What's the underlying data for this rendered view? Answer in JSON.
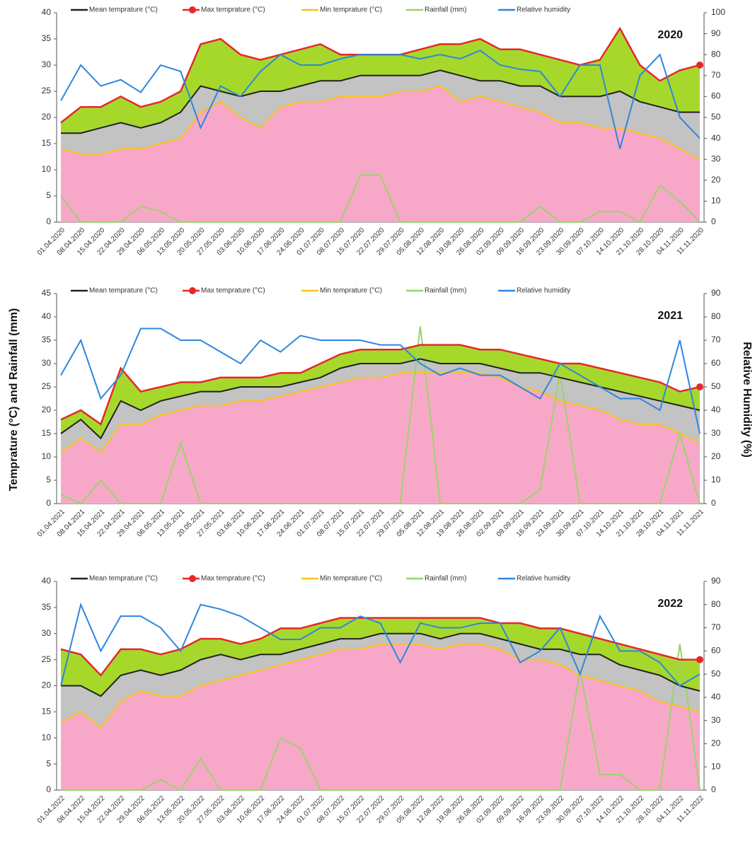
{
  "y_axis_label": "Temprature (°C) and Rainfall (mm)",
  "y2_axis_label": "Relative Humidity (%)",
  "chart_data": [
    {
      "type": "line",
      "annotation": "2020",
      "categories": [
        "01.04.2020",
        "08.04.2020",
        "15.04.2020",
        "22.04.2020",
        "29.04.2020",
        "06.05.2020",
        "13.05.2020",
        "20.05.2020",
        "27.05.2020",
        "03.06.2020",
        "10.06.2020",
        "17.06.2020",
        "24.06.2020",
        "01.07.2020",
        "08.07.2020",
        "15.07.2020",
        "22.07.2020",
        "29.07.2020",
        "05.08.2020",
        "12.08.2020",
        "19.08.2020",
        "26.08.2020",
        "02.09.2020",
        "09.09.2020",
        "16.09.2020",
        "23.09.2020",
        "30.09.2020",
        "07.10.2020",
        "14.10.2020",
        "21.10.2020",
        "28.10.2020",
        "04.11.2020",
        "11.11.2020"
      ],
      "ylim": [
        0,
        40
      ],
      "yticks": [
        0,
        5,
        10,
        15,
        20,
        25,
        30,
        35,
        40
      ],
      "y2lim": [
        0,
        100
      ],
      "y2ticks": [
        0,
        10,
        20,
        30,
        40,
        50,
        60,
        70,
        80,
        90,
        100
      ],
      "series": [
        {
          "name": "Mean temprature  (°C)",
          "color": "#222222",
          "fill": "#c3c3c3",
          "values": [
            17,
            17,
            18,
            19,
            18,
            19,
            21,
            26,
            25,
            24,
            25,
            25,
            26,
            27,
            27,
            28,
            28,
            28,
            28,
            29,
            28,
            27,
            27,
            26,
            26,
            24,
            24,
            24,
            25,
            23,
            22,
            21,
            21
          ]
        },
        {
          "name": "Max temprature (°C)",
          "color": "#e8262a",
          "fill": "#a6d82c",
          "values": [
            19,
            22,
            22,
            24,
            22,
            23,
            25,
            34,
            35,
            32,
            31,
            32,
            33,
            34,
            32,
            32,
            32,
            32,
            33,
            34,
            34,
            35,
            33,
            33,
            32,
            31,
            30,
            31,
            37,
            30,
            27,
            29,
            30
          ]
        },
        {
          "name": "Min temprature (°C)",
          "color": "#f5c518",
          "fill": "#f7a8c8",
          "values": [
            14,
            13,
            13,
            14,
            14,
            15,
            16,
            21,
            23,
            20,
            18,
            22,
            23,
            23,
            24,
            24,
            24,
            25,
            25,
            26,
            23,
            24,
            23,
            22,
            21,
            19,
            19,
            18,
            18,
            17,
            16,
            14,
            12
          ]
        },
        {
          "name": "Rainfall (mm)",
          "color": "#9ad36a",
          "values": [
            5,
            0,
            0,
            0,
            3,
            2,
            0,
            0,
            0,
            0,
            0,
            0,
            0,
            0,
            0,
            9,
            9,
            0,
            0,
            0,
            0,
            0,
            0,
            0,
            3,
            0,
            0,
            2,
            2,
            0,
            7,
            4,
            0
          ]
        },
        {
          "name": "Relative humidity",
          "color": "#2e86de",
          "axis": "y2",
          "values": [
            58,
            75,
            65,
            68,
            62,
            75,
            72,
            45,
            65,
            60,
            72,
            80,
            75,
            75,
            78,
            80,
            80,
            80,
            78,
            80,
            78,
            82,
            75,
            73,
            72,
            60,
            75,
            75,
            35,
            70,
            80,
            50,
            40
          ]
        }
      ]
    },
    {
      "type": "line",
      "annotation": "2021",
      "categories": [
        "01.04.2021",
        "08.04.2021",
        "15.04.2021",
        "22.04.2021",
        "29.04.2021",
        "06.05.2021",
        "13.05.2021",
        "20.05.2021",
        "27.05.2021",
        "03.06.2021",
        "10.06.2021",
        "17.06.2021",
        "24.06.2021",
        "01.07.2021",
        "08.07.2021",
        "15.07.2021",
        "22.07.2021",
        "29.07.2021",
        "05.08.2021",
        "12.08.2021",
        "19.08.2021",
        "26.08.2021",
        "02.09.2021",
        "09.09.2021",
        "16.09.2021",
        "23.09.2021",
        "30.09.2021",
        "07.10.2021",
        "14.10.2021",
        "21.10.2021",
        "28.10.2021",
        "04.11.2021",
        "11.11.2021"
      ],
      "ylim": [
        0,
        45
      ],
      "yticks": [
        0,
        5,
        10,
        15,
        20,
        25,
        30,
        35,
        40,
        45
      ],
      "y2lim": [
        0,
        90
      ],
      "y2ticks": [
        0,
        10,
        20,
        30,
        40,
        50,
        60,
        70,
        80,
        90
      ],
      "series": [
        {
          "name": "Mean temprature  (°C)",
          "color": "#222222",
          "fill": "#c3c3c3",
          "values": [
            15,
            18,
            14,
            22,
            20,
            22,
            23,
            24,
            24,
            25,
            25,
            25,
            26,
            27,
            29,
            30,
            30,
            30,
            31,
            30,
            30,
            30,
            29,
            28,
            28,
            27,
            26,
            25,
            24,
            23,
            22,
            21,
            20
          ]
        },
        {
          "name": "Max temprature (°C)",
          "color": "#e8262a",
          "fill": "#a6d82c",
          "values": [
            18,
            20,
            17,
            29,
            24,
            25,
            26,
            26,
            27,
            27,
            27,
            28,
            28,
            30,
            32,
            33,
            33,
            33,
            34,
            34,
            34,
            33,
            33,
            32,
            31,
            30,
            30,
            29,
            28,
            27,
            26,
            24,
            25
          ]
        },
        {
          "name": "Min temprature (°C)",
          "color": "#f5c518",
          "fill": "#f7a8c8",
          "values": [
            11,
            14,
            11,
            17,
            17,
            19,
            20,
            21,
            21,
            22,
            22,
            23,
            24,
            25,
            26,
            27,
            27,
            28,
            28,
            28,
            28,
            28,
            27,
            25,
            24,
            22,
            21,
            20,
            18,
            17,
            17,
            15,
            13
          ]
        },
        {
          "name": "Rainfall (mm)",
          "color": "#9ad36a",
          "values": [
            2,
            0,
            5,
            0,
            0,
            0,
            13,
            0,
            0,
            0,
            0,
            0,
            0,
            0,
            0,
            0,
            0,
            0,
            38,
            0,
            0,
            0,
            0,
            0,
            3,
            28,
            0,
            0,
            0,
            0,
            0,
            15,
            0
          ]
        },
        {
          "name": "Relative humidity",
          "color": "#2e86de",
          "axis": "y2",
          "values": [
            55,
            70,
            45,
            55,
            75,
            75,
            70,
            70,
            65,
            60,
            70,
            65,
            72,
            70,
            70,
            70,
            68,
            68,
            60,
            55,
            58,
            55,
            55,
            50,
            45,
            60,
            55,
            50,
            45,
            45,
            40,
            70,
            30
          ]
        }
      ]
    },
    {
      "type": "line",
      "annotation": "2022",
      "categories": [
        "01.04.2022",
        "08.04.2022",
        "15.04.2022",
        "22.04.2022",
        "29.04.2022",
        "06.05.2022",
        "13.05.2022",
        "20.05.2022",
        "27.05.2022",
        "03.06.2022",
        "10.06.2022",
        "17.06.2022",
        "24.06.2022",
        "01.07.2022",
        "08.07.2022",
        "15.07.2022",
        "22.07.2022",
        "29.07.2022",
        "05.08.2022",
        "12.08.2022",
        "19.08.2022",
        "26.08.2022",
        "02.09.2022",
        "09.09.2022",
        "16.09.2022",
        "23.09.2022",
        "30.09.2022",
        "07.10.2022",
        "14.10.2022",
        "21.10.2022",
        "28.10.2022",
        "04.11.2022",
        "11.11.2022"
      ],
      "ylim": [
        0,
        40
      ],
      "yticks": [
        0,
        5,
        10,
        15,
        20,
        25,
        30,
        35,
        40
      ],
      "y2lim": [
        0,
        90
      ],
      "y2ticks": [
        0,
        10,
        20,
        30,
        40,
        50,
        60,
        70,
        80,
        90
      ],
      "series": [
        {
          "name": "Mean temprature  (°C)",
          "color": "#222222",
          "fill": "#c3c3c3",
          "values": [
            20,
            20,
            18,
            22,
            23,
            22,
            23,
            25,
            26,
            25,
            26,
            26,
            27,
            28,
            29,
            29,
            30,
            30,
            30,
            29,
            30,
            30,
            29,
            28,
            27,
            27,
            26,
            26,
            24,
            23,
            22,
            20,
            19
          ]
        },
        {
          "name": "Max temprature (°C)",
          "color": "#e8262a",
          "fill": "#a6d82c",
          "values": [
            27,
            26,
            22,
            27,
            27,
            26,
            27,
            29,
            29,
            28,
            29,
            31,
            31,
            32,
            33,
            33,
            33,
            33,
            33,
            33,
            33,
            33,
            32,
            32,
            31,
            31,
            30,
            29,
            28,
            27,
            26,
            25,
            25
          ]
        },
        {
          "name": "Min temprature (°C)",
          "color": "#f5c518",
          "fill": "#f7a8c8",
          "values": [
            13,
            15,
            12,
            17,
            19,
            18,
            18,
            20,
            21,
            22,
            23,
            24,
            25,
            26,
            27,
            27,
            28,
            28,
            28,
            27,
            28,
            28,
            27,
            25,
            25,
            24,
            22,
            21,
            20,
            19,
            17,
            16,
            15
          ]
        },
        {
          "name": "Rainfall (mm)",
          "color": "#9ad36a",
          "values": [
            0,
            0,
            0,
            0,
            0,
            2,
            0,
            6,
            0,
            0,
            0,
            10,
            8,
            0,
            0,
            0,
            0,
            0,
            0,
            0,
            0,
            0,
            0,
            0,
            0,
            0,
            23,
            3,
            3,
            0,
            0,
            28,
            0
          ]
        },
        {
          "name": "Relative humidity",
          "color": "#2e86de",
          "axis": "y2",
          "values": [
            45,
            80,
            60,
            75,
            75,
            70,
            60,
            80,
            78,
            75,
            70,
            65,
            65,
            70,
            70,
            75,
            72,
            55,
            72,
            70,
            70,
            72,
            72,
            55,
            60,
            70,
            50,
            75,
            60,
            60,
            55,
            45,
            50
          ]
        }
      ]
    }
  ]
}
